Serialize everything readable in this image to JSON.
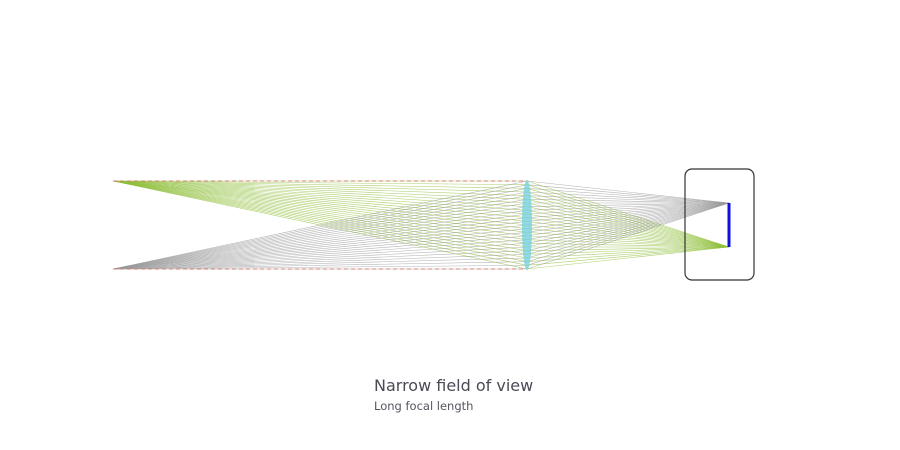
{
  "caption": {
    "title": "Narrow field of view",
    "subtitle": "Long focal length"
  },
  "colors": {
    "ray_green": "#8fbf3a",
    "ray_gray": "#9a9a9a",
    "ray_edge_dashed": "#d9776f",
    "lens_fill": "#7fd3dc",
    "sensor": "#1010dd",
    "camera_body_stroke": "#333333"
  }
}
